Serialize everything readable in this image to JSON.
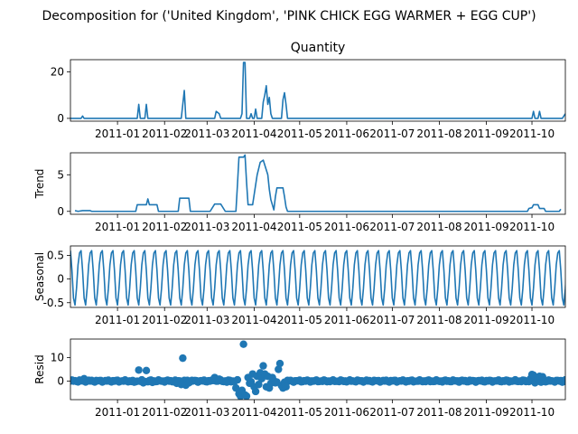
{
  "figure": {
    "suptitle": "Decomposition for ('United Kingdom', 'PINK CHICK EGG WARMER + EGG CUP')"
  },
  "x_axis": {
    "start": "2010-12-01",
    "end": "2011-10-23",
    "ticks": [
      {
        "date": "2011-01-01",
        "label": "2011-01"
      },
      {
        "date": "2011-02-01",
        "label": "2011-02"
      },
      {
        "date": "2011-03-01",
        "label": "2011-03"
      },
      {
        "date": "2011-04-01",
        "label": "2011-04"
      },
      {
        "date": "2011-05-01",
        "label": "2011-05"
      },
      {
        "date": "2011-06-01",
        "label": "2011-06"
      },
      {
        "date": "2011-07-01",
        "label": "2011-07"
      },
      {
        "date": "2011-08-01",
        "label": "2011-08"
      },
      {
        "date": "2011-09-01",
        "label": "2011-09"
      },
      {
        "date": "2011-10-01",
        "label": "2011-10"
      }
    ]
  },
  "color": "#1f77b4",
  "chart_data": [
    {
      "type": "line",
      "title": "Quantity",
      "ylabel": "",
      "ylim": [
        -1.2,
        25.2
      ],
      "yticks": [
        0,
        20
      ],
      "points": [
        [
          "2010-12-01",
          0
        ],
        [
          "2010-12-08",
          0
        ],
        [
          "2010-12-09",
          1
        ],
        [
          "2010-12-10",
          0
        ],
        [
          "2011-01-14",
          0
        ],
        [
          "2011-01-15",
          6
        ],
        [
          "2011-01-16",
          0
        ],
        [
          "2011-01-19",
          0
        ],
        [
          "2011-01-20",
          6
        ],
        [
          "2011-01-21",
          0
        ],
        [
          "2011-02-12",
          0
        ],
        [
          "2011-02-14",
          12
        ],
        [
          "2011-02-15",
          0
        ],
        [
          "2011-03-06",
          0
        ],
        [
          "2011-03-07",
          3
        ],
        [
          "2011-03-09",
          2
        ],
        [
          "2011-03-10",
          0
        ],
        [
          "2011-03-23",
          0
        ],
        [
          "2011-03-24",
          2
        ],
        [
          "2011-03-25",
          24
        ],
        [
          "2011-03-26",
          24
        ],
        [
          "2011-03-27",
          0
        ],
        [
          "2011-03-29",
          0
        ],
        [
          "2011-03-30",
          2
        ],
        [
          "2011-03-31",
          0
        ],
        [
          "2011-04-01",
          0
        ],
        [
          "2011-04-02",
          4
        ],
        [
          "2011-04-03",
          0
        ],
        [
          "2011-04-06",
          0
        ],
        [
          "2011-04-07",
          7
        ],
        [
          "2011-04-08",
          10
        ],
        [
          "2011-04-09",
          14
        ],
        [
          "2011-04-10",
          6
        ],
        [
          "2011-04-11",
          9
        ],
        [
          "2011-04-12",
          2
        ],
        [
          "2011-04-13",
          0
        ],
        [
          "2011-04-19",
          0
        ],
        [
          "2011-04-20",
          8
        ],
        [
          "2011-04-21",
          11
        ],
        [
          "2011-04-22",
          6
        ],
        [
          "2011-04-23",
          0
        ],
        [
          "2011-10-01",
          0
        ],
        [
          "2011-10-02",
          3
        ],
        [
          "2011-10-03",
          0
        ],
        [
          "2011-10-05",
          0
        ],
        [
          "2011-10-06",
          3
        ],
        [
          "2011-10-07",
          0
        ],
        [
          "2011-10-21",
          0
        ],
        [
          "2011-10-23",
          2
        ]
      ]
    },
    {
      "type": "line",
      "title": "",
      "ylabel": "Trend",
      "ylim": [
        -0.4,
        8.0
      ],
      "yticks": [
        0,
        5
      ],
      "points": [
        [
          "2010-12-04",
          0.1
        ],
        [
          "2010-12-06",
          0.0
        ],
        [
          "2010-12-09",
          0.1
        ],
        [
          "2010-12-14",
          0.1
        ],
        [
          "2010-12-15",
          0.0
        ],
        [
          "2011-01-13",
          0.0
        ],
        [
          "2011-01-14",
          0.9
        ],
        [
          "2011-01-20",
          0.9
        ],
        [
          "2011-01-21",
          1.7
        ],
        [
          "2011-01-22",
          0.9
        ],
        [
          "2011-01-27",
          0.9
        ],
        [
          "2011-01-28",
          0.0
        ],
        [
          "2011-02-10",
          0.0
        ],
        [
          "2011-02-11",
          1.8
        ],
        [
          "2011-02-17",
          1.8
        ],
        [
          "2011-02-18",
          0.0
        ],
        [
          "2011-03-03",
          0.0
        ],
        [
          "2011-03-06",
          1.0
        ],
        [
          "2011-03-10",
          1.0
        ],
        [
          "2011-03-13",
          0.0
        ],
        [
          "2011-03-20",
          0.0
        ],
        [
          "2011-03-21",
          3.6
        ],
        [
          "2011-03-22",
          7.4
        ],
        [
          "2011-03-25",
          7.4
        ],
        [
          "2011-03-26",
          7.7
        ],
        [
          "2011-03-27",
          4.0
        ],
        [
          "2011-03-28",
          0.9
        ],
        [
          "2011-03-31",
          0.9
        ],
        [
          "2011-04-03",
          5.0
        ],
        [
          "2011-04-05",
          6.7
        ],
        [
          "2011-04-07",
          7.0
        ],
        [
          "2011-04-10",
          5.0
        ],
        [
          "2011-04-11",
          3.0
        ],
        [
          "2011-04-12",
          1.6
        ],
        [
          "2011-04-14",
          0.2
        ],
        [
          "2011-04-15",
          2.0
        ],
        [
          "2011-04-16",
          3.2
        ],
        [
          "2011-04-20",
          3.2
        ],
        [
          "2011-04-21",
          2.0
        ],
        [
          "2011-04-22",
          0.6
        ],
        [
          "2011-04-23",
          0.0
        ],
        [
          "2011-09-28",
          0.0
        ],
        [
          "2011-09-29",
          0.4
        ],
        [
          "2011-10-01",
          0.5
        ],
        [
          "2011-10-02",
          0.9
        ],
        [
          "2011-10-05",
          0.9
        ],
        [
          "2011-10-06",
          0.4
        ],
        [
          "2011-10-09",
          0.4
        ],
        [
          "2011-10-10",
          0.0
        ],
        [
          "2011-10-19",
          0.0
        ],
        [
          "2011-10-20",
          0.3
        ]
      ]
    },
    {
      "type": "line",
      "title": "",
      "ylabel": "Seasonal",
      "ylim": [
        -0.6,
        0.7
      ],
      "yticks": [
        -0.5,
        0.0,
        0.5
      ],
      "period_days": 7,
      "weekly_pattern": [
        0.6,
        0.18,
        -0.4,
        -0.55,
        -0.2,
        0.3,
        0.55
      ]
    },
    {
      "type": "scatter",
      "title": "",
      "ylabel": "Resid",
      "ylim": [
        -8.0,
        18.0
      ],
      "yticks": [
        0,
        10
      ],
      "points": [
        [
          "2010-12-07",
          0.4
        ],
        [
          "2010-12-10",
          1.0
        ],
        [
          "2011-01-12",
          -0.5
        ],
        [
          "2011-01-15",
          4.7
        ],
        [
          "2011-01-18",
          -0.8
        ],
        [
          "2011-01-20",
          4.5
        ],
        [
          "2011-01-24",
          -0.6
        ],
        [
          "2011-02-09",
          -1.0
        ],
        [
          "2011-02-12",
          -1.5
        ],
        [
          "2011-02-13",
          9.8
        ],
        [
          "2011-02-15",
          -1.8
        ],
        [
          "2011-02-17",
          -0.8
        ],
        [
          "2011-03-06",
          1.5
        ],
        [
          "2011-03-09",
          0.8
        ],
        [
          "2011-03-14",
          -0.5
        ],
        [
          "2011-03-20",
          -3.0
        ],
        [
          "2011-03-22",
          -5.5
        ],
        [
          "2011-03-23",
          -6.5
        ],
        [
          "2011-03-24",
          -4.0
        ],
        [
          "2011-03-25",
          15.8
        ],
        [
          "2011-03-26",
          -6.0
        ],
        [
          "2011-03-27",
          -6.5
        ],
        [
          "2011-03-28",
          1.5
        ],
        [
          "2011-03-29",
          -1.0
        ],
        [
          "2011-03-31",
          3.0
        ],
        [
          "2011-04-01",
          -2.5
        ],
        [
          "2011-04-02",
          -4.5
        ],
        [
          "2011-04-03",
          2.0
        ],
        [
          "2011-04-04",
          -1.5
        ],
        [
          "2011-04-05",
          3.5
        ],
        [
          "2011-04-06",
          1.0
        ],
        [
          "2011-04-07",
          6.5
        ],
        [
          "2011-04-08",
          3.0
        ],
        [
          "2011-04-09",
          -2.5
        ],
        [
          "2011-04-10",
          2.0
        ],
        [
          "2011-04-11",
          -3.0
        ],
        [
          "2011-04-12",
          -1.0
        ],
        [
          "2011-04-13",
          1.5
        ],
        [
          "2011-04-15",
          -0.8
        ],
        [
          "2011-04-17",
          5.0
        ],
        [
          "2011-04-18",
          7.5
        ],
        [
          "2011-04-19",
          -2.0
        ],
        [
          "2011-04-20",
          -3.0
        ],
        [
          "2011-04-21",
          -0.5
        ],
        [
          "2011-04-22",
          -2.5
        ],
        [
          "2011-09-30",
          1.0
        ],
        [
          "2011-10-01",
          2.8
        ],
        [
          "2011-10-02",
          2.5
        ],
        [
          "2011-10-03",
          -0.8
        ],
        [
          "2011-10-05",
          1.2
        ],
        [
          "2011-10-06",
          2.0
        ],
        [
          "2011-10-07",
          -0.5
        ],
        [
          "2011-10-08",
          1.8
        ],
        [
          "2011-10-21",
          -0.5
        ],
        [
          "2011-10-23",
          0.5
        ]
      ],
      "baseline": {
        "value": 0.0,
        "jitter": 0.5
      }
    }
  ]
}
